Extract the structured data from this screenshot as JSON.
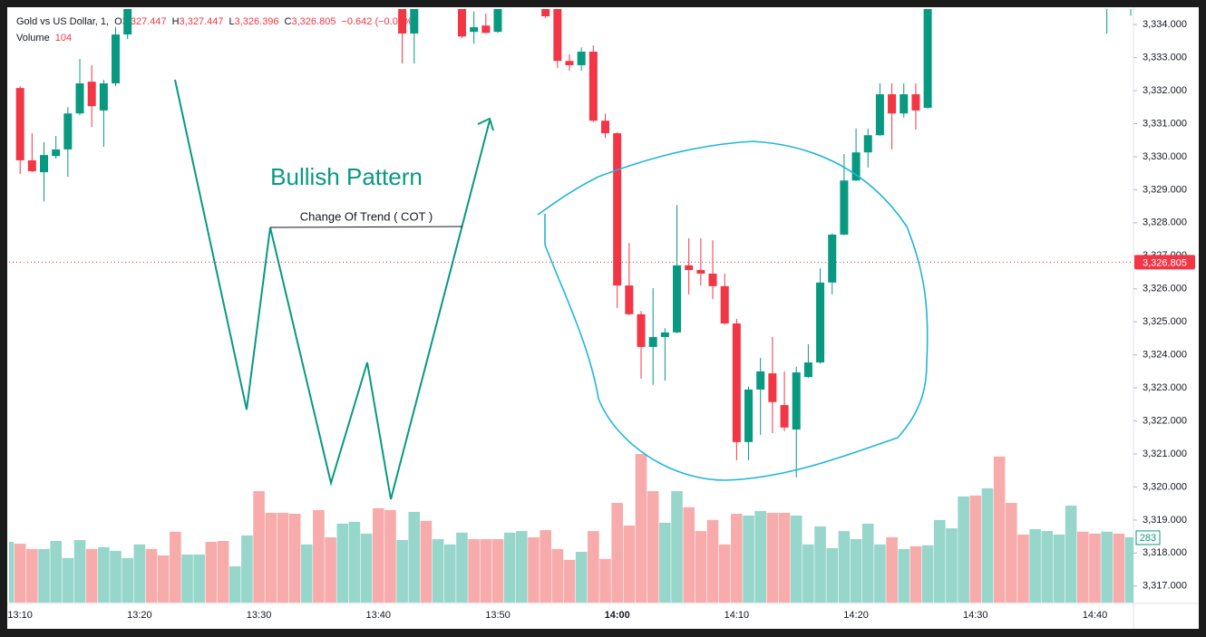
{
  "chart_data": {
    "type": "candlestick",
    "header": {
      "symbol": "Gold vs US Dollar, 1,",
      "fields": [
        {
          "key": "O",
          "value": "3,327.447"
        },
        {
          "key": "H",
          "value": "3,327.447"
        },
        {
          "key": "L",
          "value": "3,326.396"
        },
        {
          "key": "C",
          "value": "3,326.805"
        }
      ],
      "change": "−0.642 (−0.02%)",
      "volume_label": "Volume",
      "volume_value": "104"
    },
    "annotations": [
      "Bullish Pattern",
      "Change Of Trend ( COT )"
    ],
    "up_color": "#089981",
    "down_color": "#f23645",
    "categories": [
      null,
      "13:10",
      null,
      null,
      null,
      null,
      null,
      null,
      null,
      null,
      null,
      "13:20",
      null,
      null,
      null,
      null,
      null,
      null,
      null,
      null,
      null,
      "13:30",
      null,
      null,
      null,
      null,
      null,
      null,
      null,
      null,
      null,
      "13:40",
      null,
      null,
      null,
      null,
      null,
      null,
      null,
      null,
      null,
      "13:50",
      null,
      null,
      null,
      null,
      null,
      null,
      null,
      null,
      null,
      "14:00",
      null,
      null,
      null,
      null,
      null,
      null,
      null,
      null,
      null,
      "14:10",
      null,
      null,
      null,
      null,
      null,
      null,
      null,
      null,
      null,
      "14:20",
      null,
      null,
      null,
      null,
      null,
      null,
      null,
      null,
      null,
      "14:30",
      null,
      null,
      null,
      null,
      null,
      null,
      null,
      null,
      null,
      "14:40",
      null,
      null,
      null
    ],
    "open": [
      null,
      3332.08,
      3329.89,
      3329.53,
      3330.02,
      3330.22,
      3331.31,
      3332.27,
      3331.4,
      3332.22,
      3333.7,
      null,
      null,
      null,
      null,
      null,
      null,
      null,
      null,
      null,
      null,
      null,
      null,
      null,
      null,
      null,
      null,
      null,
      null,
      null,
      null,
      null,
      null,
      3334.6,
      3333.73,
      null,
      null,
      null,
      3334.6,
      3333.78,
      3333.97,
      3333.78,
      null,
      null,
      null,
      3334.6,
      3334.5,
      3332.9,
      3332.77,
      3333.18,
      3331.09,
      3330.71,
      3326.1,
      3325.23,
      3324.24,
      3324.54,
      3324.68,
      3326.71,
      3326.57,
      3326.46,
      3326.08,
      3324.95,
      3321.36,
      3322.95,
      3323.44,
      3322.48,
      3321.74,
      3323.33,
      3323.77,
      3326.19,
      3327.64,
      3329.28,
      3330.13,
      3330.65,
      3331.89,
      3331.31,
      3331.89,
      3331.48,
      null,
      null,
      null,
      null,
      null,
      null,
      null,
      null,
      null,
      null,
      null,
      null,
      null,
      null,
      3334.7,
      null,
      3334.7
    ],
    "high": [
      null,
      3332.14,
      3330.71,
      3330.44,
      3330.63,
      3331.5,
      3332.96,
      3332.77,
      3332.33,
      3333.92,
      3334.9,
      null,
      null,
      null,
      null,
      null,
      null,
      null,
      null,
      null,
      null,
      null,
      null,
      null,
      null,
      null,
      null,
      null,
      null,
      null,
      null,
      null,
      null,
      3334.8,
      3334.8,
      null,
      null,
      null,
      3334.8,
      3334.4,
      3334.33,
      3334.8,
      null,
      null,
      null,
      3334.8,
      3334.8,
      3333.1,
      3333.31,
      3333.37,
      3331.3,
      3330.75,
      3327.39,
      3325.33,
      3326.02,
      3324.81,
      3328.54,
      3327.53,
      3327.53,
      3327.47,
      3326.46,
      3325.09,
      3323.04,
      3323.91,
      3324.54,
      3323.5,
      3323.64,
      3324.32,
      3326.62,
      3327.68,
      3330.08,
      3330.85,
      3330.85,
      3332.22,
      3332.22,
      3332.22,
      3332.22,
      3334.8,
      null,
      null,
      null,
      null,
      null,
      null,
      null,
      null,
      null,
      null,
      null,
      null,
      null,
      null,
      3335.0,
      null,
      3335.0
    ],
    "low": [
      null,
      3329.48,
      3329.53,
      3328.65,
      3329.94,
      3329.39,
      3331.26,
      3330.9,
      3330.3,
      3332.14,
      3333.56,
      null,
      null,
      null,
      null,
      null,
      null,
      null,
      null,
      null,
      null,
      null,
      null,
      null,
      null,
      null,
      null,
      null,
      null,
      null,
      null,
      null,
      null,
      3332.82,
      3332.82,
      null,
      null,
      null,
      3333.59,
      3333.42,
      3333.73,
      3333.75,
      null,
      null,
      null,
      3334.2,
      3332.68,
      3332.6,
      3332.6,
      3331.05,
      3330.57,
      3325.42,
      3325.2,
      3323.28,
      3323.09,
      3323.22,
      3324.65,
      3325.83,
      3326.1,
      3325.69,
      3324.92,
      3320.81,
      3320.81,
      3321.58,
      3321.63,
      3321.69,
      3320.29,
      3323.3,
      3323.73,
      3325.83,
      3327.62,
      3329.26,
      3329.67,
      3330.63,
      3330.22,
      3331.18,
      3330.82,
      3331.45,
      null,
      null,
      null,
      null,
      null,
      null,
      null,
      null,
      null,
      null,
      null,
      null,
      null,
      null,
      3333.73,
      null,
      3334.27
    ],
    "close": [
      null,
      3329.89,
      3329.56,
      3330.05,
      3330.22,
      3331.31,
      3332.22,
      3331.53,
      3332.22,
      3333.7,
      3334.6,
      null,
      null,
      null,
      null,
      null,
      null,
      null,
      null,
      null,
      null,
      null,
      null,
      null,
      null,
      null,
      null,
      null,
      null,
      null,
      null,
      null,
      null,
      3333.73,
      3334.6,
      null,
      null,
      null,
      3333.64,
      3333.92,
      3333.75,
      3334.6,
      null,
      null,
      null,
      3334.25,
      3332.9,
      3332.77,
      3333.18,
      3331.09,
      3330.71,
      3326.1,
      3325.23,
      3324.24,
      3324.54,
      3324.68,
      3326.71,
      3326.57,
      3326.46,
      3326.08,
      3324.95,
      3321.36,
      3322.95,
      3323.5,
      3322.57,
      3321.8,
      3323.47,
      3323.77,
      3326.19,
      3327.64,
      3329.28,
      3330.13,
      3330.65,
      3331.89,
      3331.31,
      3331.89,
      3331.4,
      3334.6,
      null,
      null,
      null,
      null,
      null,
      null,
      null,
      null,
      null,
      null,
      null,
      null,
      null,
      null,
      3334.9,
      null,
      3334.9
    ],
    "ylim": [
      3316.5,
      3334.47
    ],
    "yticks": [
      {
        "value": 3317,
        "label": "3,317.000"
      },
      {
        "value": 3318,
        "label": "3,318.000"
      },
      {
        "value": 3319,
        "label": "3,319.000"
      },
      {
        "value": 3320,
        "label": "3,320.000"
      },
      {
        "value": 3321,
        "label": "3,321.000"
      },
      {
        "value": 3322,
        "label": "3,322.000"
      },
      {
        "value": 3323,
        "label": "3,323.000"
      },
      {
        "value": 3324,
        "label": "3,324.000"
      },
      {
        "value": 3325,
        "label": "3,325.000"
      },
      {
        "value": 3326,
        "label": "3,326.000"
      },
      {
        "value": 3327,
        "label": "3,327.000"
      },
      {
        "value": 3328,
        "label": "3,328.000"
      },
      {
        "value": 3329,
        "label": "3,329.000"
      },
      {
        "value": 3330,
        "label": "3,330.000"
      },
      {
        "value": 3331,
        "label": "3,331.000"
      },
      {
        "value": 3332,
        "label": "3,332.000"
      },
      {
        "value": 3333,
        "label": "3,333.000"
      },
      {
        "value": 3334,
        "label": "3,334.000"
      }
    ],
    "grid": false,
    "last_price": {
      "value": 3326.805,
      "label": "3,326.805"
    },
    "volume": {
      "up_color": "#97d6cb",
      "down_color": "#f8abab",
      "values": [
        263,
        255,
        232,
        232,
        267,
        193,
        271,
        232,
        240,
        224,
        193,
        252,
        232,
        204,
        307,
        208,
        208,
        263,
        267,
        157,
        291,
        483,
        389,
        389,
        385,
        252,
        401,
        283,
        342,
        350,
        299,
        409,
        401,
        271,
        393,
        354,
        275,
        252,
        303,
        275,
        275,
        275,
        303,
        310,
        283,
        314,
        232,
        185,
        220,
        310,
        189,
        432,
        334,
        644,
        483,
        346,
        483,
        413,
        310,
        358,
        252,
        385,
        377,
        397,
        389,
        389,
        377,
        252,
        330,
        236,
        310,
        275,
        342,
        252,
        283,
        232,
        244,
        248,
        358,
        322,
        460,
        464,
        495,
        633,
        432,
        295,
        318,
        310,
        295,
        420,
        307,
        299,
        307,
        299,
        283
      ],
      "directions": [
        "up",
        "down",
        "down",
        "up",
        "up",
        "up",
        "up",
        "down",
        "up",
        "up",
        "up",
        "up",
        "down",
        "down",
        "down",
        "up",
        "up",
        "down",
        "down",
        "up",
        "up",
        "down",
        "down",
        "down",
        "down",
        "up",
        "down",
        "down",
        "up",
        "up",
        "up",
        "down",
        "down",
        "up",
        "up",
        "down",
        "up",
        "up",
        "up",
        "down",
        "down",
        "down",
        "up",
        "up",
        "down",
        "down",
        "down",
        "down",
        "up",
        "down",
        "down",
        "down",
        "down",
        "down",
        "down",
        "up",
        "up",
        "down",
        "down",
        "down",
        "down",
        "down",
        "up",
        "up",
        "down",
        "down",
        "up",
        "up",
        "up",
        "up",
        "up",
        "up",
        "up",
        "up",
        "down",
        "up",
        "down",
        "up",
        "up",
        "up",
        "up",
        "down",
        "up",
        "down",
        "down",
        "down",
        "up",
        "up",
        "up",
        "up",
        "down",
        "down",
        "up",
        "down",
        "up"
      ]
    }
  }
}
